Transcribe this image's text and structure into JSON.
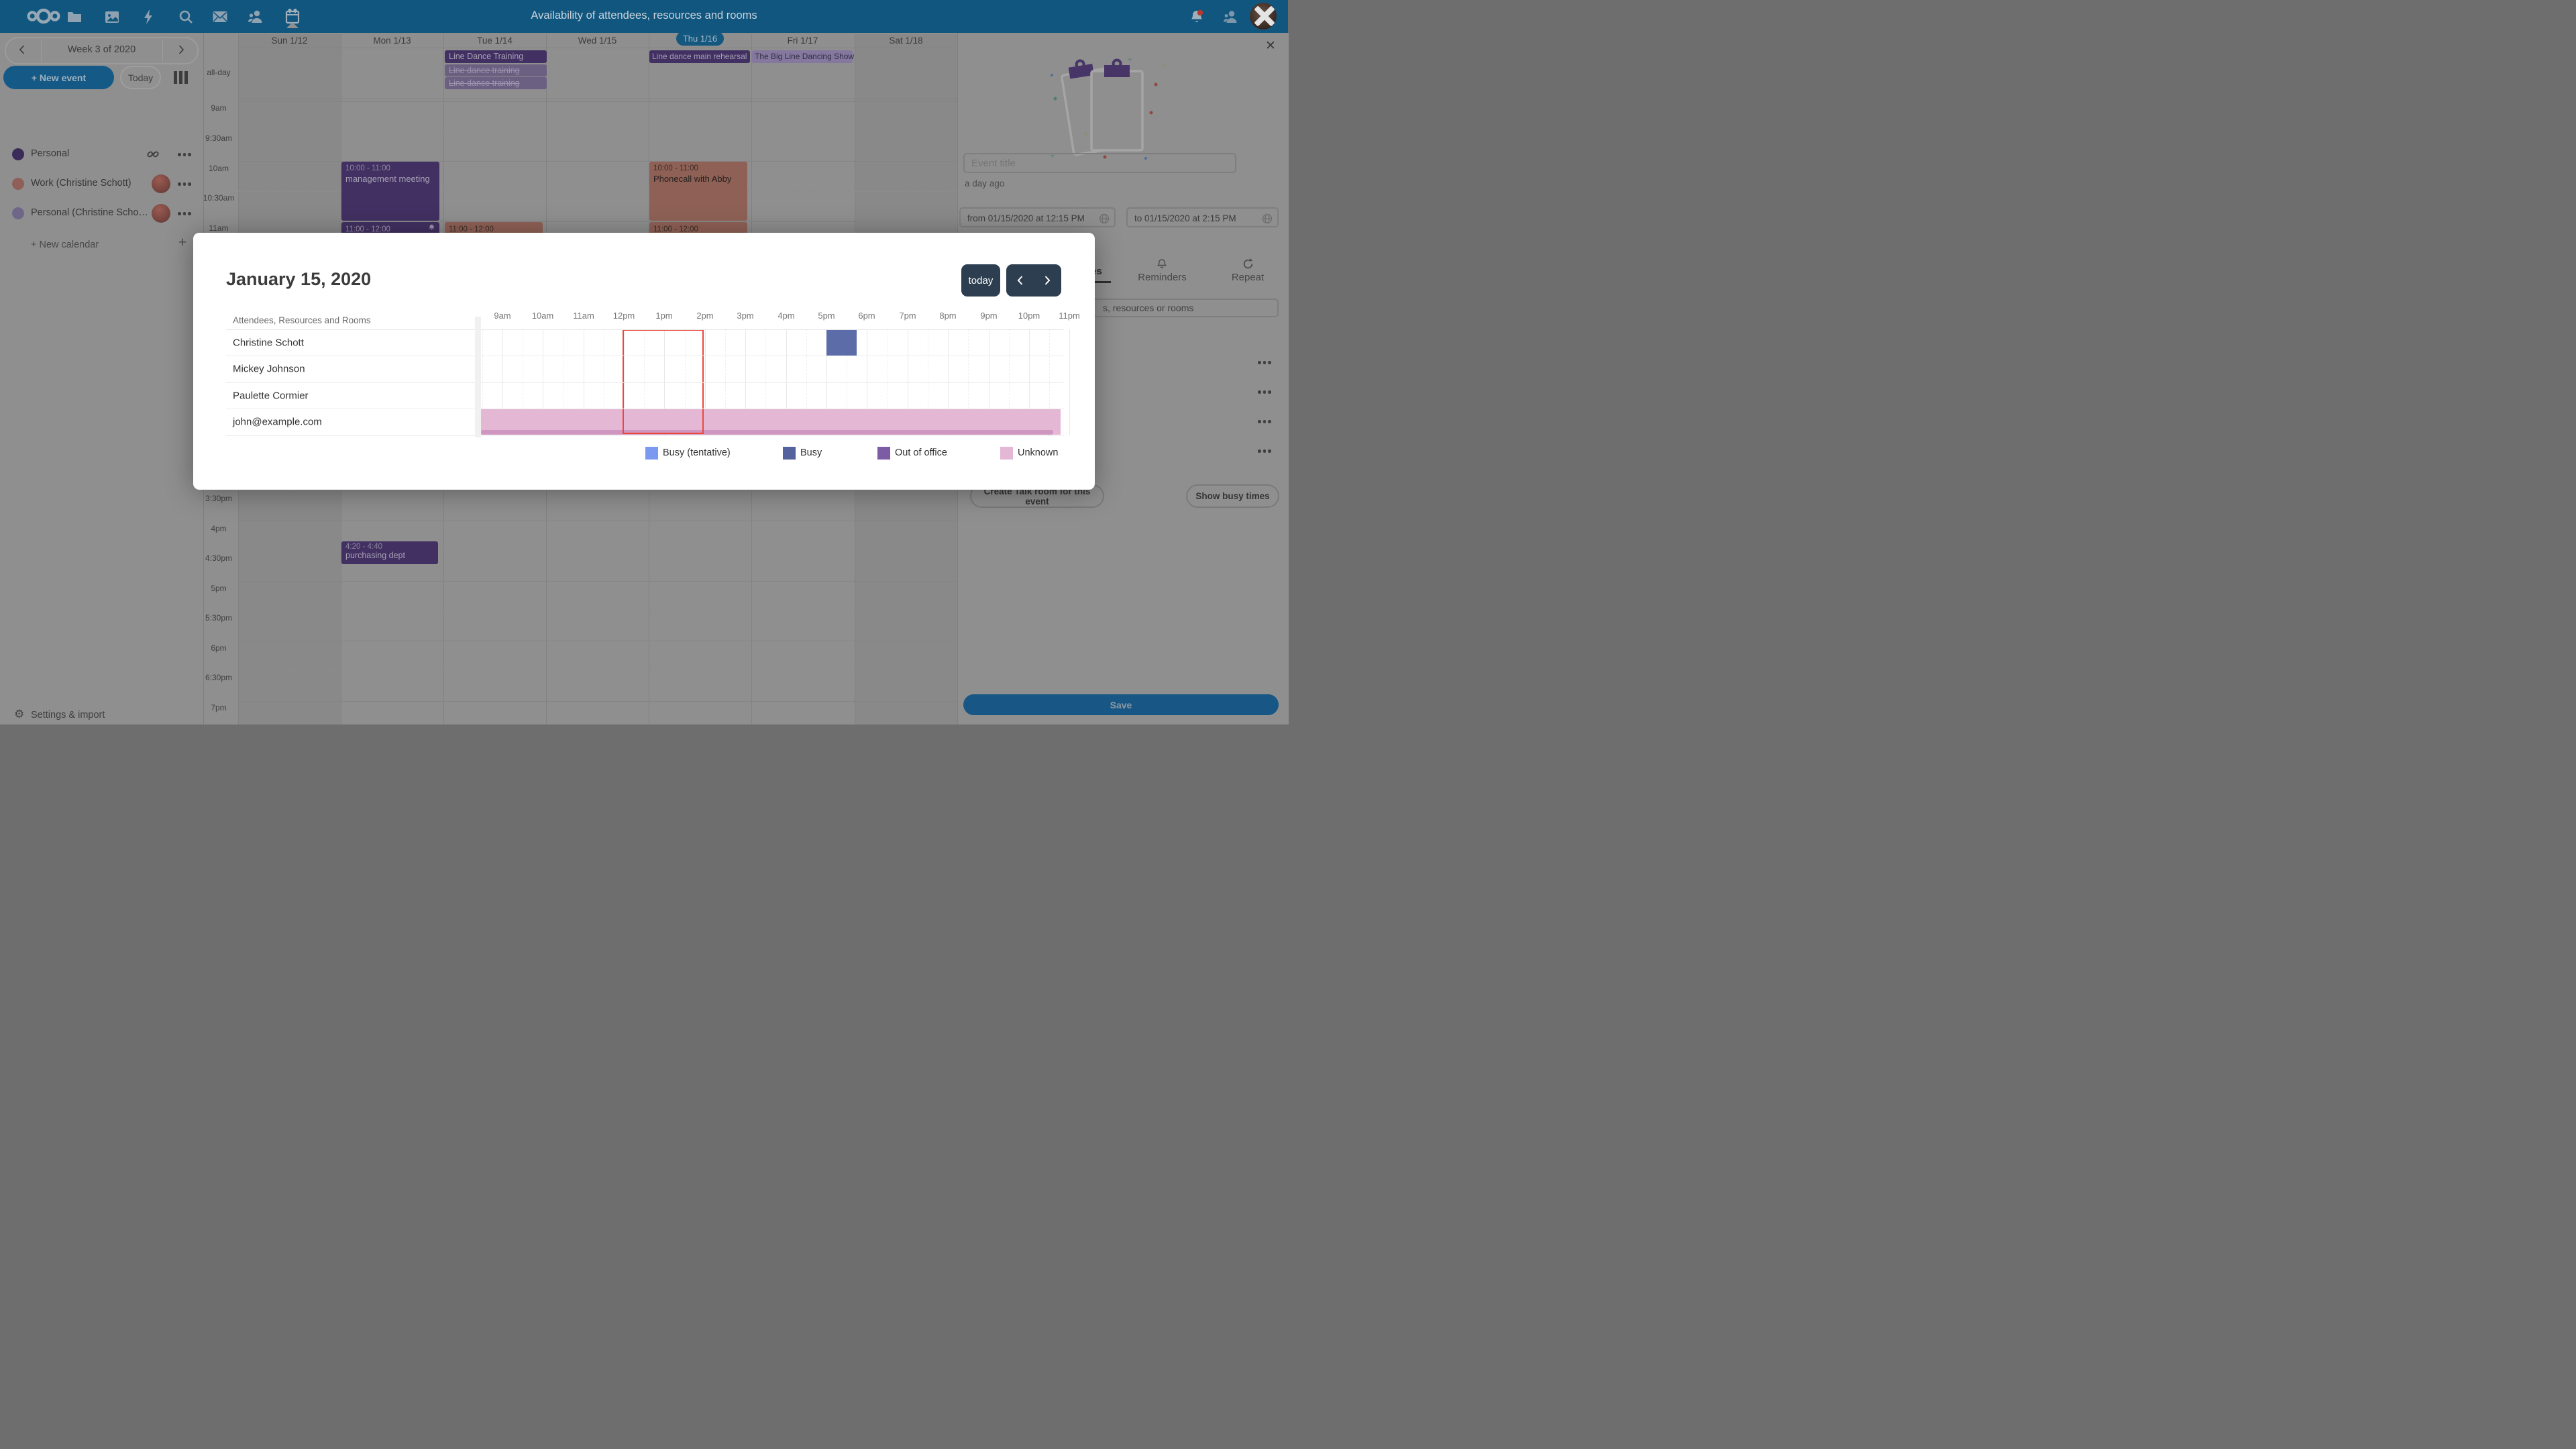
{
  "topbar": {
    "title": "Availability of attendees, resources and rooms",
    "apps": [
      "nextcloud-logo",
      "files",
      "photos",
      "activity",
      "search",
      "mail",
      "contacts",
      "calendar"
    ]
  },
  "sidebar": {
    "week_label": "Week 3 of 2020",
    "new_event": "+ New event",
    "today": "Today",
    "calendars": [
      {
        "name": "Personal",
        "color": "#3b2b58"
      },
      {
        "name": "Work (Christine Schott)",
        "color": "#8f5f58"
      },
      {
        "name": "Personal (Christine Scho…",
        "color": "#6f6788"
      }
    ],
    "new_calendar": "+ New calendar",
    "settings": "Settings & import"
  },
  "week": {
    "days": [
      "Sun 1/12",
      "Mon 1/13",
      "Tue 1/14",
      "Wed 1/15",
      "Thu 1/16",
      "Fri 1/17",
      "Sat 1/18"
    ],
    "selected_day": "Thu 1/16",
    "allday_label": "all-day",
    "gutter": [
      "9am",
      "9:30am",
      "10am",
      "10:30am",
      "11am",
      "3:30pm",
      "4pm",
      "4:30pm",
      "5pm",
      "5:30pm",
      "6pm",
      "6:30pm",
      "7pm"
    ],
    "allday_events": [
      {
        "day": "Tue 1/14",
        "title": "Line Dance Training",
        "style": "solid-purple"
      },
      {
        "day": "Tue 1/14",
        "title": "Line dance training",
        "style": "cancelled"
      },
      {
        "day": "Tue 1/14",
        "title": "Line dance training",
        "style": "cancelled"
      },
      {
        "day": "Thu 1/16",
        "title": "Line dance main rehearsal",
        "style": "solid-purple"
      },
      {
        "day": "Fri 1/17",
        "title": "The Big Line Dancing Show",
        "style": "light-purple"
      }
    ],
    "events": [
      {
        "day": "Mon 1/13",
        "time": "10:00 - 11:00",
        "title": "management meeting",
        "color": "purple"
      },
      {
        "day": "Mon 1/13",
        "time": "11:00 - 12:00",
        "title": "",
        "color": "purple",
        "reminder": true
      },
      {
        "day": "Tue 1/14",
        "time": "11:00 - 12:00",
        "title": "",
        "color": "salmon"
      },
      {
        "day": "Thu 1/16",
        "time": "10:00 - 11:00",
        "title": "Phonecall with Abby",
        "color": "salmon"
      },
      {
        "day": "Thu 1/16",
        "time": "11:00 - 12:00",
        "title": "",
        "color": "salmon"
      },
      {
        "day": "Mon 1/13",
        "time": "4:20 - 4:40",
        "title": "purchasing dept",
        "color": "purple"
      }
    ]
  },
  "modal": {
    "date_title": "January 15, 2020",
    "today_button": "today",
    "grid": {
      "header": "Attendees, Resources and Rooms",
      "attendees": [
        "Christine Schott",
        "Mickey Johnson",
        "Paulette Cormier",
        "john@example.com"
      ],
      "hours": [
        "9am",
        "10am",
        "11am",
        "12pm",
        "1pm",
        "2pm",
        "3pm",
        "4pm",
        "5pm",
        "6pm",
        "7pm",
        "8pm",
        "9pm",
        "10pm",
        "11pm"
      ],
      "selection": {
        "start": "12pm",
        "end": "2pm"
      },
      "busy_block": {
        "attendee": "Christine Schott",
        "status": "Busy",
        "start": "5:00 PM",
        "end": "5:45 PM",
        "color": "#5b6ca8"
      },
      "unknown_row": {
        "attendee": "john@example.com",
        "status": "Unknown",
        "color": "#e4b7d4"
      }
    },
    "legend": [
      {
        "label": "Busy (tentative)",
        "color": "#7b99f1"
      },
      {
        "label": "Busy",
        "color": "#54639d"
      },
      {
        "label": "Out of office",
        "color": "#7d5ca6"
      },
      {
        "label": "Unknown",
        "color": "#e4b7d4"
      }
    ]
  },
  "editor": {
    "close": "✕",
    "event_title_placeholder": "Event title",
    "modified": "a day ago",
    "from": "from 01/15/2020 at 12:15 PM",
    "to": "to 01/15/2020 at 2:15 PM",
    "tab_attendees_visible": "es",
    "tab_reminders": "Reminders",
    "tab_repeat": "Repeat",
    "search_visible": "s, resources or rooms",
    "talk_button": "Create Talk room for this event",
    "busy_button": "Show busy times",
    "save": "Save"
  }
}
